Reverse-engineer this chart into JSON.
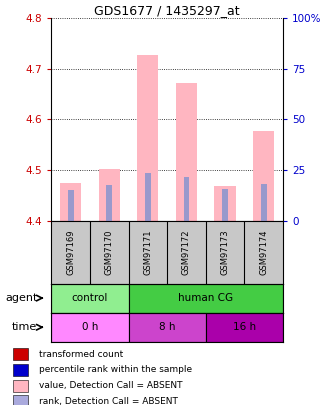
{
  "title": "GDS1677 / 1435297_at",
  "samples": [
    "GSM97169",
    "GSM97170",
    "GSM97171",
    "GSM97172",
    "GSM97173",
    "GSM97174"
  ],
  "pink_bar_top": [
    4.475,
    4.503,
    4.728,
    4.673,
    4.468,
    4.578
  ],
  "pink_bar_bottom": [
    4.4,
    4.4,
    4.4,
    4.4,
    4.4,
    4.4
  ],
  "blue_bar_top": [
    4.461,
    4.471,
    4.494,
    4.487,
    4.462,
    4.472
  ],
  "blue_bar_bottom": [
    4.4,
    4.4,
    4.4,
    4.4,
    4.4,
    4.4
  ],
  "ylim": [
    4.4,
    4.8
  ],
  "yticks_left": [
    4.4,
    4.5,
    4.6,
    4.7,
    4.8
  ],
  "yticks_right": [
    0,
    25,
    50,
    75,
    100
  ],
  "pink_color": "#FFB6C1",
  "blue_color": "#9999CC",
  "agent_colors": [
    "#90EE90",
    "#44CC44"
  ],
  "time_colors": [
    "#FF88FF",
    "#CC44CC",
    "#AA00AA"
  ],
  "agent_row_label": "agent",
  "time_row_label": "time",
  "legend_items": [
    {
      "label": "transformed count",
      "color": "#CC0000"
    },
    {
      "label": "percentile rank within the sample",
      "color": "#0000CC"
    },
    {
      "label": "value, Detection Call = ABSENT",
      "color": "#FFB6C1"
    },
    {
      "label": "rank, Detection Call = ABSENT",
      "color": "#AAAADD"
    }
  ],
  "bg_color": "#FFFFFF",
  "plot_bg": "#FFFFFF",
  "left_tick_color": "#CC0000",
  "right_tick_color": "#0000CC",
  "sample_bg": "#C8C8C8"
}
